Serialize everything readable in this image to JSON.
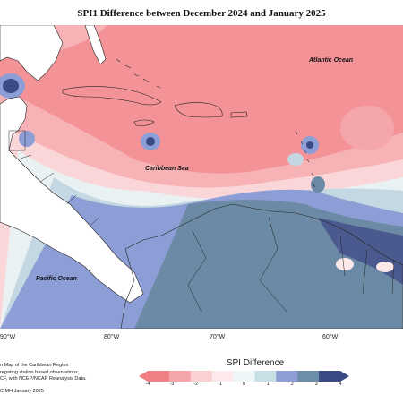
{
  "title": "SPI1 Difference between December 2024 and January 2025",
  "labels": {
    "atlantic": "Atlantic Ocean",
    "caribbean": "Caribbean Sea",
    "pacific": "Pacific Ocean"
  },
  "axis_ticks": [
    "90°W",
    "80°W",
    "70°W",
    "60°W"
  ],
  "notes": [
    "n Map of the Caribbean Region",
    "regating station based observations,",
    "CF, with NCEP/NCAR Reanalysis Data.",
    "CIMH January 2025"
  ],
  "legend": {
    "title": "SPI Difference",
    "ticks": [
      "-4",
      "-3",
      "-2",
      "-1",
      "0",
      "1",
      "2",
      "3",
      "4"
    ],
    "colors": [
      "#f07f84",
      "#f5a6aa",
      "#fad0d2",
      "#fde9ea",
      "#eef6f8",
      "#c9dfe6",
      "#8f9fd6",
      "#6b8fa8",
      "#3b4a82"
    ]
  },
  "colors": {
    "land": "#ffffff",
    "dry_strong": "#f07f84",
    "wet_strong": "#3b4a82"
  }
}
